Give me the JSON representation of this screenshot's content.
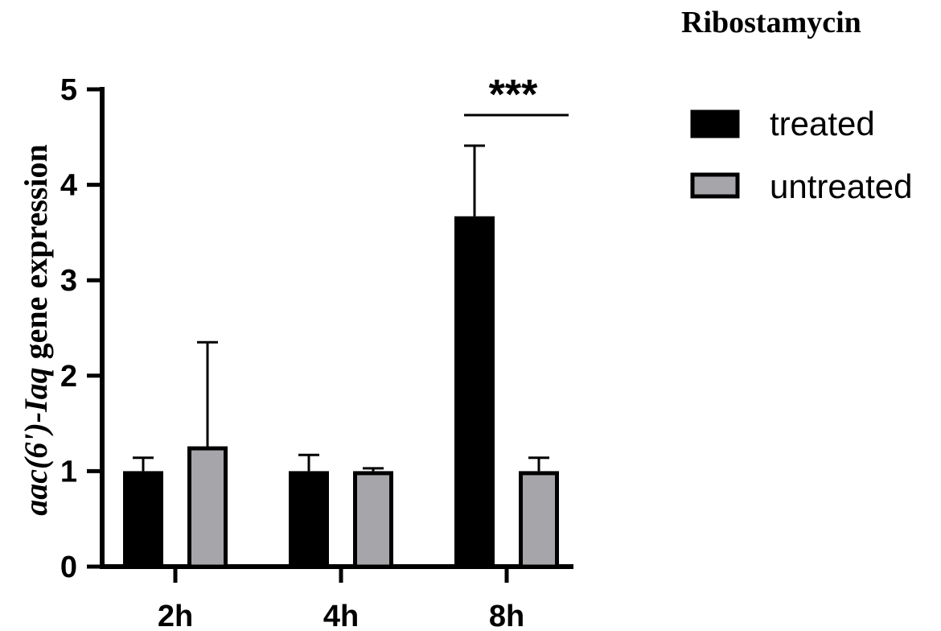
{
  "chart_data": {
    "type": "bar",
    "title": "Ribostamycin",
    "ylabel_italic": "aac(6')-Iaq",
    "ylabel_rest": " gene expression",
    "xlabel": "",
    "categories": [
      "2h",
      "4h",
      "8h"
    ],
    "ylim": [
      0,
      5
    ],
    "yticks": [
      0,
      1,
      2,
      3,
      4,
      5
    ],
    "series": [
      {
        "name": "treated",
        "values": [
          1.0,
          1.0,
          3.67
        ],
        "errors": [
          0.14,
          0.17,
          0.74
        ],
        "color": "#000000"
      },
      {
        "name": "untreated",
        "values": [
          1.26,
          1.0,
          1.0
        ],
        "errors": [
          1.09,
          0.03,
          0.14
        ],
        "color": "#a6a6aa"
      }
    ],
    "annotations": [
      {
        "category": "8h",
        "text": "***"
      }
    ],
    "legend_position": "top-right",
    "grid": false
  }
}
